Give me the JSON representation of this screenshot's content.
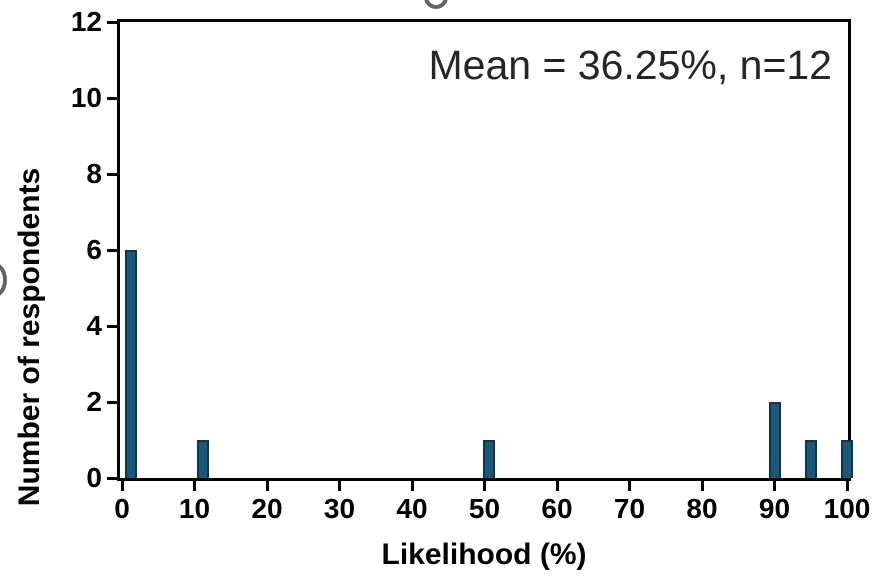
{
  "chart_data": {
    "type": "bar",
    "x": [
      0,
      10,
      50,
      90,
      95,
      100
    ],
    "values": [
      6,
      1,
      1,
      2,
      1,
      1
    ],
    "xlabel": "Likelihood (%)",
    "ylabel": "Number of respondents",
    "annotation": "Mean = 36.25%, n=12",
    "mean": 36.25,
    "n": 12,
    "xlim": [
      0,
      100
    ],
    "ylim": [
      0,
      12
    ],
    "xticks": [
      0,
      10,
      20,
      30,
      40,
      50,
      60,
      70,
      80,
      90,
      100
    ],
    "yticks": [
      0,
      2,
      4,
      6,
      8,
      10,
      12
    ],
    "grid": false,
    "legend": null,
    "bar_color": "#17597B",
    "bar_border_color": "#10364A",
    "axis_color": "#000000",
    "annotation_color": "#262626",
    "fragment_color": "#5f6368"
  }
}
